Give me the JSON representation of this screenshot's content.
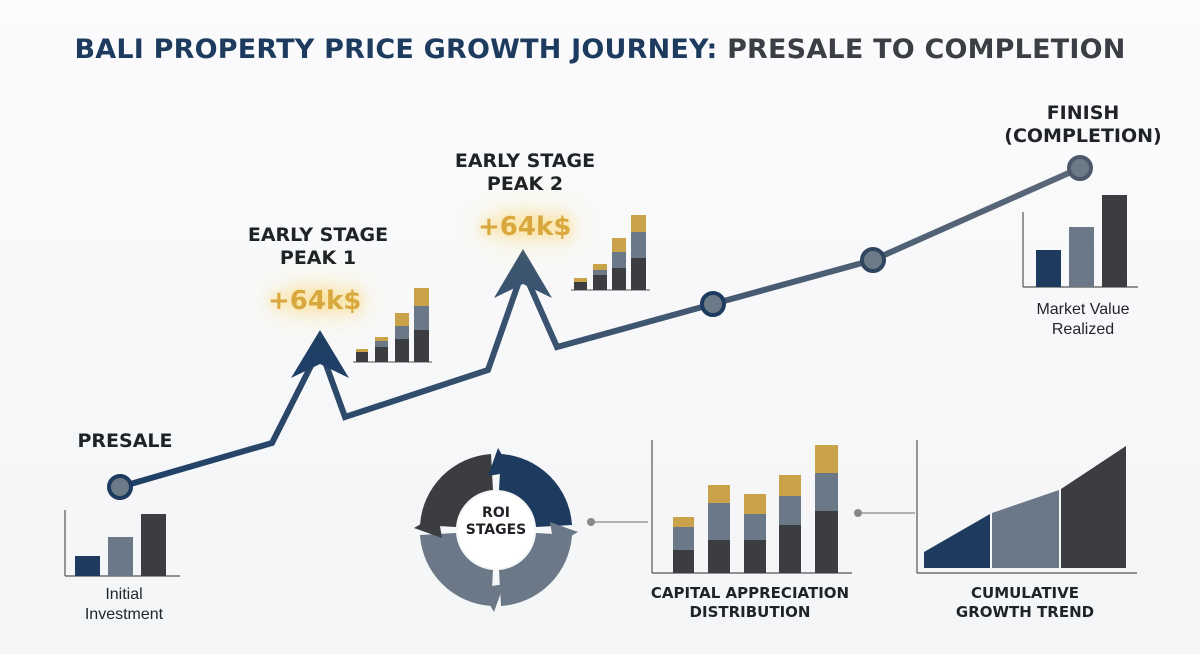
{
  "title": {
    "part1": "BALI PROPERTY PRICE GROWTH JOURNEY:",
    "part2": "PRESALE TO COMPLETION"
  },
  "journey": {
    "presale": {
      "label": "PRESALE",
      "caption": "Initial Investment"
    },
    "peak1": {
      "label": "EARLY STAGE PEAK 1",
      "gain": "+64k$"
    },
    "peak2": {
      "label": "EARLY STAGE PEAK 2",
      "gain": "+64k$"
    },
    "finish": {
      "label": "FINISH (COMPLETION)",
      "caption": "Market Value Realized"
    }
  },
  "donut": {
    "label": "ROI STAGES"
  },
  "distribution": {
    "label": "CAPITAL APPRECIATION DISTRIBUTION"
  },
  "trend": {
    "label": "CUMULATIVE GROWTH TREND"
  },
  "colors": {
    "navy": "#1d3a5f",
    "slate": "#6b7887",
    "charcoal": "#3c3d40",
    "gold": "#caa24a",
    "line_start": "#1f3f66",
    "line_end": "#5b6878"
  }
}
